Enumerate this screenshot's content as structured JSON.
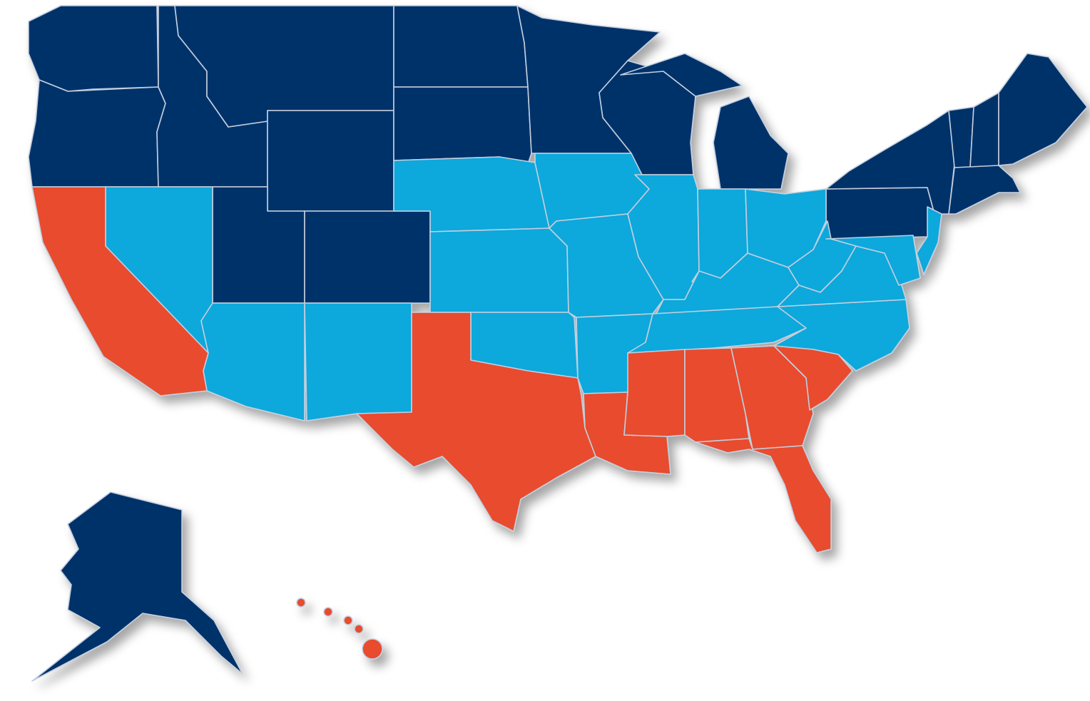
{
  "map": {
    "colors": [
      "#06306a",
      "#0ea8dc",
      "#e84c2d"
    ],
    "border_color": "#c3cfde"
  }
}
